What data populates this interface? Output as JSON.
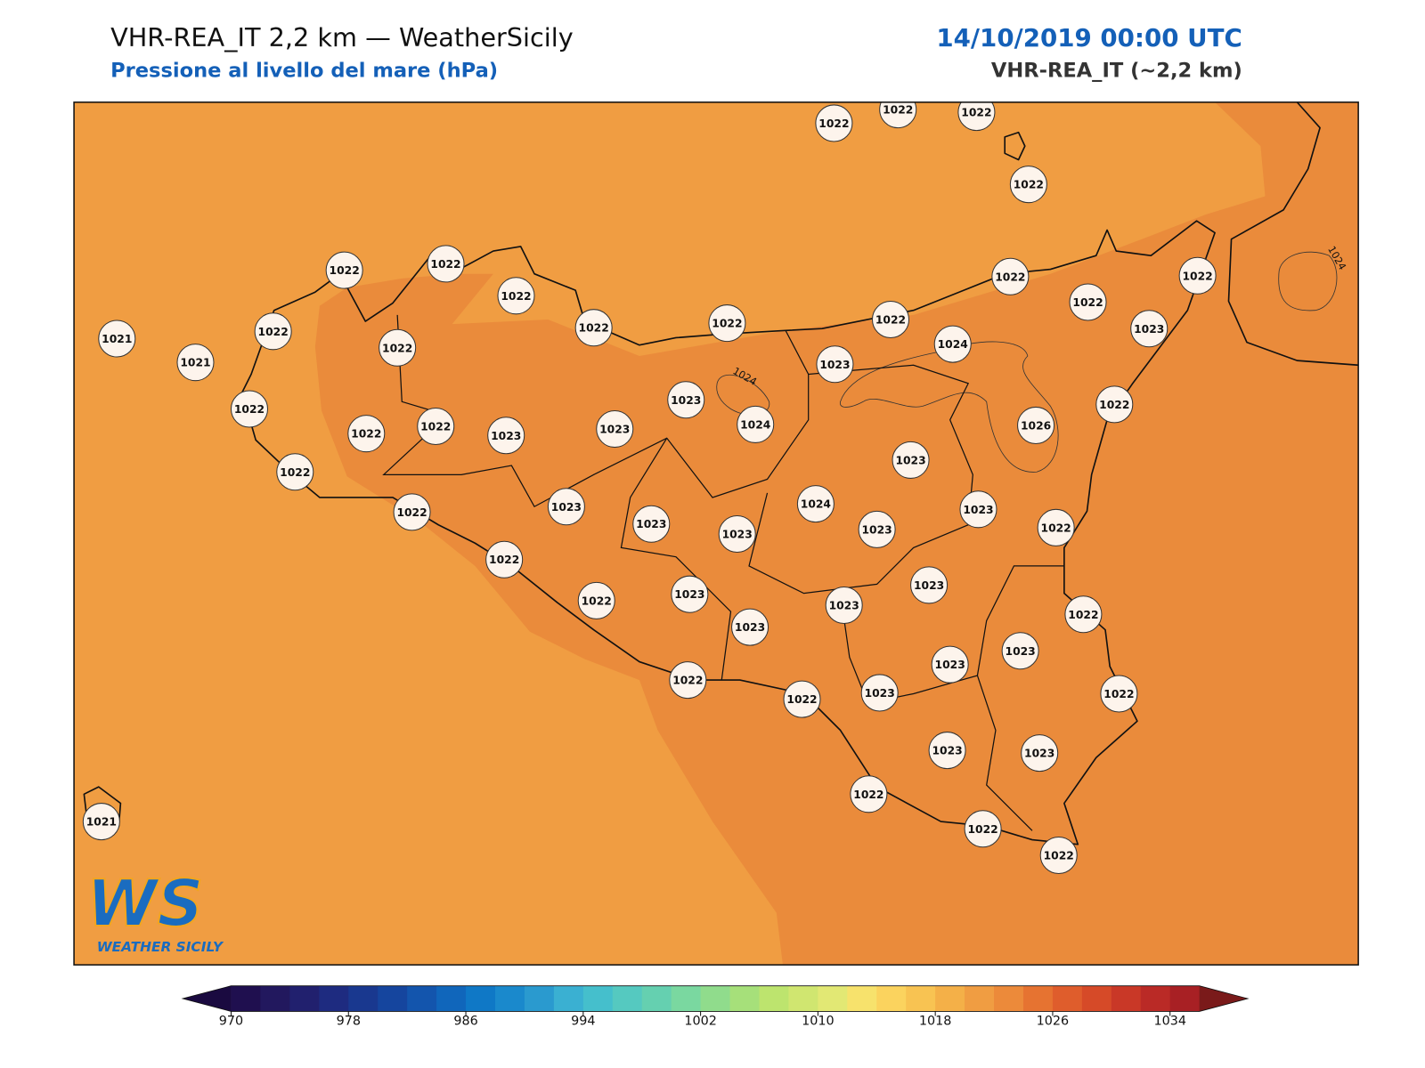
{
  "header": {
    "title": "VHR-REA_IT 2,2 km — WeatherSicily",
    "subtitle": "Pressione al livello del mare (hPa)",
    "datetime": "14/10/2019 00:00 UTC",
    "model": "VHR-REA_IT (~2,2 km)"
  },
  "map": {
    "stations": [
      1022,
      1022,
      1022,
      1022,
      1022,
      1022,
      1022,
      1021,
      1021,
      1022,
      1022,
      1022,
      1022,
      1022,
      1022,
      1022,
      1022,
      1023,
      1023,
      1024,
      1023,
      1024,
      1026,
      1022,
      1022,
      1022,
      1022,
      1023,
      1023,
      1023,
      1022,
      1022,
      1023,
      1023,
      1023,
      1024,
      1023,
      1023,
      1022,
      1022,
      1022,
      1023,
      1023,
      1023,
      1023,
      1022,
      1023,
      1023,
      1022,
      1022,
      1022,
      1023,
      1023,
      1023,
      1022,
      1022,
      1022,
      1021
    ],
    "contour_labels": [
      1024,
      1024
    ]
  },
  "colorbar": {
    "lim": [
      970,
      1036
    ],
    "ticks": [
      970,
      978,
      986,
      994,
      1002,
      1010,
      1018,
      1026,
      1034
    ],
    "colors": [
      "#1f0f4f",
      "#22185e",
      "#21206e",
      "#1e2b80",
      "#19388f",
      "#15459e",
      "#1355ad",
      "#1066bb",
      "#0f78c6",
      "#1a89cc",
      "#2a9acf",
      "#3ab0d2",
      "#45bfcc",
      "#55c9c0",
      "#65d0b0",
      "#7ad8a0",
      "#90dc8c",
      "#a6e07a",
      "#bde46e",
      "#d0e670",
      "#e2e874",
      "#f7e26c",
      "#fbd35e",
      "#f8c352",
      "#f4b048",
      "#f09d42",
      "#ec8a3a",
      "#e67331",
      "#df5d2c",
      "#d64a28",
      "#c93827",
      "#ba2a26",
      "#a82024"
    ],
    "extend_colors": [
      "#1a0a40",
      "#7a1a1a"
    ]
  },
  "logo": {
    "mark": "WS",
    "name": "WEATHER SICILY"
  }
}
